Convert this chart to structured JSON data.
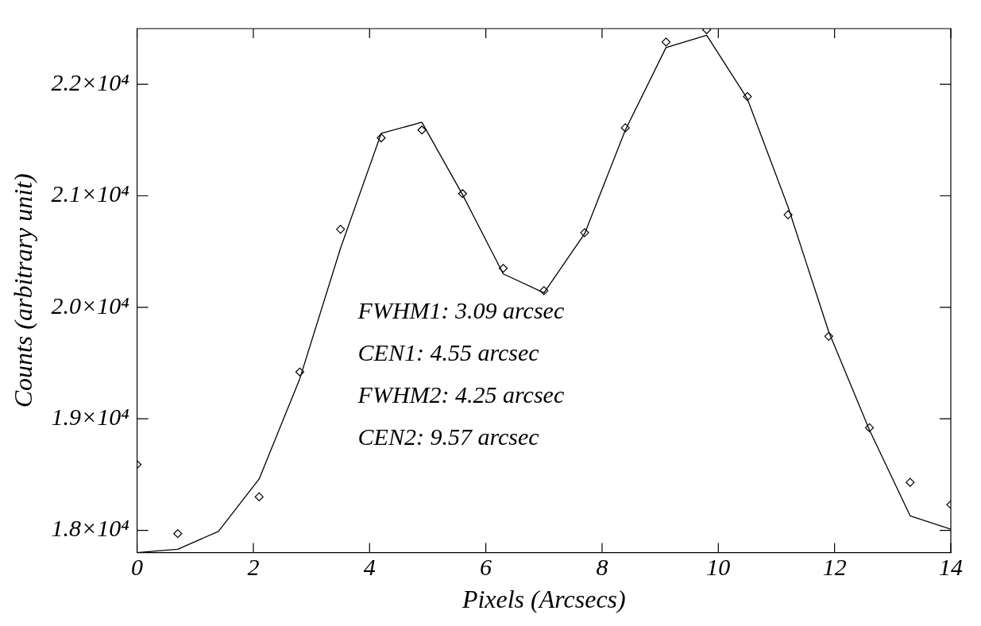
{
  "chart_data": {
    "type": "line",
    "xlabel": "Pixels (Arcsecs)",
    "ylabel": "Counts (arbitrary unit)",
    "xlim": [
      0,
      14
    ],
    "xticks": [
      0,
      2,
      4,
      6,
      8,
      10,
      12,
      14
    ],
    "ylim": [
      17800,
      22500
    ],
    "yticks": [
      {
        "value": 18000,
        "label": "1.8×10⁴"
      },
      {
        "value": 19000,
        "label": "1.9×10⁴"
      },
      {
        "value": 20000,
        "label": "2.0×10⁴"
      },
      {
        "value": 21000,
        "label": "2.1×10⁴"
      },
      {
        "value": 22000,
        "label": "2.2×10⁴"
      }
    ],
    "grid": false,
    "legend": false,
    "annotations": [
      "FWHM1: 3.09 arcsec",
      "CEN1: 4.55 arcsec",
      "FWHM2: 4.25 arcsec",
      "CEN2: 9.57 arcsec"
    ],
    "series": [
      {
        "type": "line",
        "color": "#000000",
        "marker": "none",
        "line_style": "solid",
        "x": [
          0,
          0.7,
          1.4,
          2.1,
          2.8,
          3.5,
          4.2,
          4.9,
          5.6,
          6.3,
          7.0,
          7.7,
          8.4,
          9.1,
          9.8,
          10.5,
          11.2,
          11.9,
          12.6,
          13.3,
          14
        ],
        "values": [
          17800,
          17830,
          17990,
          18460,
          19360,
          20530,
          21560,
          21660,
          21010,
          20300,
          20130,
          20660,
          21590,
          22330,
          22440,
          21870,
          20900,
          19780,
          18900,
          18130,
          18010
        ]
      },
      {
        "type": "scatter",
        "color": "#000000",
        "marker": "diamond",
        "x": [
          0,
          0.7,
          2.1,
          2.8,
          3.5,
          4.2,
          4.9,
          5.6,
          6.3,
          7.0,
          7.7,
          8.4,
          9.1,
          9.8,
          10.5,
          11.2,
          11.9,
          12.6,
          13.3,
          14
        ],
        "values": [
          18590,
          17970,
          18300,
          19420,
          20700,
          21520,
          21590,
          21020,
          20350,
          20150,
          20670,
          21610,
          22380,
          22490,
          21890,
          20830,
          19740,
          18920,
          18430,
          18230
        ]
      }
    ]
  }
}
